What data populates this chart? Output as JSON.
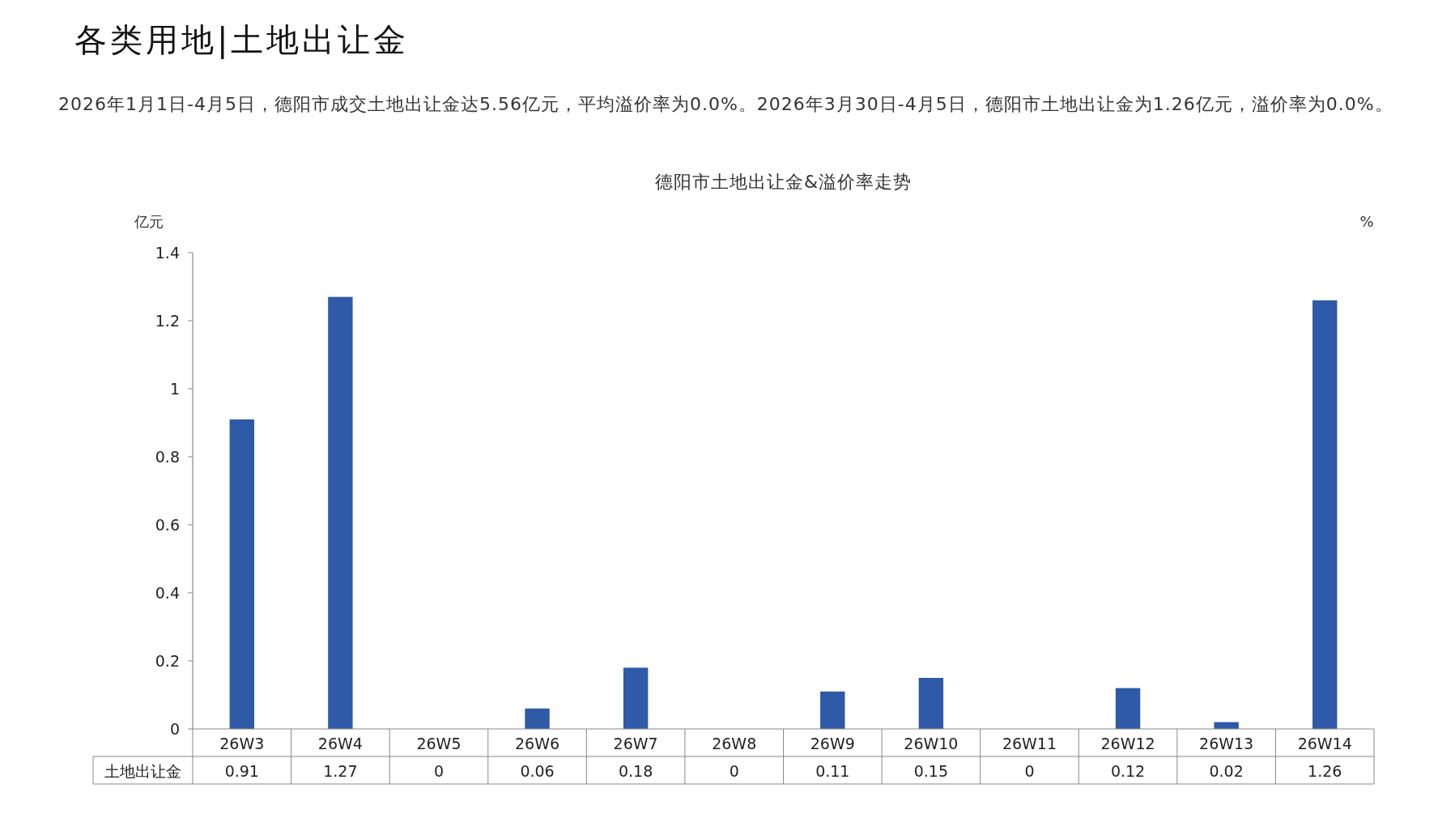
{
  "chart_data": {
    "type": "bar",
    "title": "德阳市土地出让金&溢价率走势",
    "subtitle": "2026年1月1日-4月5日，德阳市成交土地出让金达5.56亿元，平均溢价率为0.0%。2026年3月30日-4月5日，德阳市土地出让金为1.26亿元，溢价率为0.0%。",
    "annotations": [
      "各类用地|土地出让金"
    ],
    "ylabel": "亿元",
    "y2label": "%",
    "categories": [
      "26W3",
      "26W4",
      "26W5",
      "26W6",
      "26W7",
      "26W8",
      "26W9",
      "26W10",
      "26W11",
      "26W12",
      "26W13",
      "26W14"
    ],
    "series": [
      {
        "name": "土地出让金",
        "color": "#2e5aa8",
        "values": [
          0.91,
          1.27,
          0,
          0.06,
          0.18,
          0,
          0.11,
          0.15,
          0,
          0.12,
          0.02,
          1.26
        ]
      }
    ],
    "ylim": [
      0,
      1.4
    ],
    "yticks": [
      0,
      0.2,
      0.4,
      0.6,
      0.8,
      1,
      1.2,
      1.4
    ],
    "data_labels": true,
    "grid": false
  }
}
